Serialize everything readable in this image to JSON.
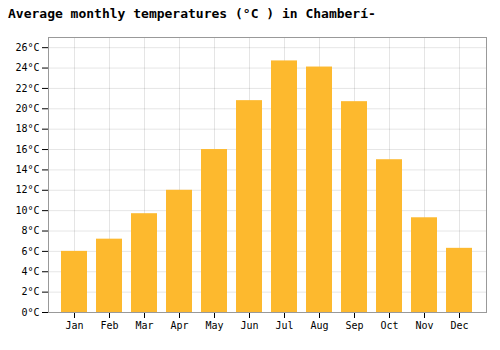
{
  "chart_data": {
    "type": "bar",
    "title": "Average monthly temperatures (°C ) in Chamberí-",
    "categories": [
      "Jan",
      "Feb",
      "Mar",
      "Apr",
      "May",
      "Jun",
      "Jul",
      "Aug",
      "Sep",
      "Oct",
      "Nov",
      "Dec"
    ],
    "values": [
      6.0,
      7.2,
      9.7,
      12.0,
      16.0,
      20.8,
      24.7,
      24.1,
      20.7,
      15.0,
      9.3,
      6.3
    ],
    "color": "#FDB92E",
    "ylim": [
      0,
      27
    ],
    "yticks": [
      {
        "value": 0,
        "label": "0°C"
      },
      {
        "value": 2,
        "label": "2°C"
      },
      {
        "value": 4,
        "label": "4°C"
      },
      {
        "value": 6,
        "label": "6°C"
      },
      {
        "value": 8,
        "label": "8°C"
      },
      {
        "value": 10,
        "label": "10°C"
      },
      {
        "value": 12,
        "label": "12°C"
      },
      {
        "value": 14,
        "label": "14°C"
      },
      {
        "value": 16,
        "label": "16°C"
      },
      {
        "value": 18,
        "label": "18°C"
      },
      {
        "value": 20,
        "label": "20°C"
      },
      {
        "value": 22,
        "label": "22°C"
      },
      {
        "value": 24,
        "label": "24°C"
      },
      {
        "value": 26,
        "label": "26°C"
      }
    ],
    "grid": true
  }
}
